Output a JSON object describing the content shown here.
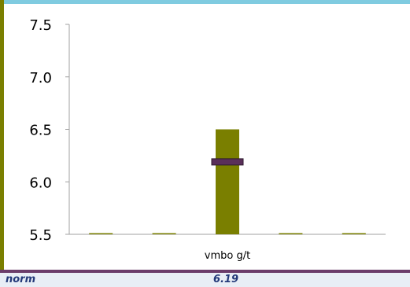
{
  "chart_data": {
    "type": "bar",
    "xlabel": "vmbo g/t",
    "ylim": [
      5.5,
      7.5
    ],
    "yticks": [
      "5.5",
      "6.0",
      "6.5",
      "7.0",
      "7.5"
    ],
    "categories": [
      "",
      "",
      "",
      "",
      ""
    ],
    "values": [
      5.5,
      5.5,
      6.5,
      5.5,
      5.5
    ],
    "marker_value": 6.19,
    "grid": false,
    "bar_color": "#7a7f00",
    "marker_color": "#5a2f5a"
  },
  "footer": {
    "label": "norm",
    "value": "6.19"
  },
  "colors": {
    "top_accent": "#7fcbe0",
    "left_accent": "#7a7f00",
    "separator": "#6b3d6b",
    "footer_bg": "#e8eef6",
    "footer_text": "#243a7a"
  }
}
